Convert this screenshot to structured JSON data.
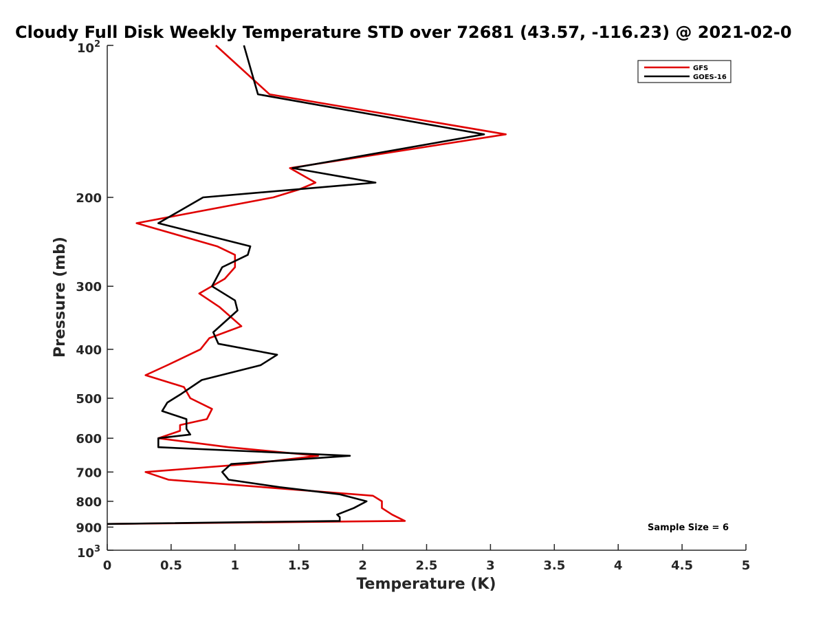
{
  "chart_data": {
    "type": "line",
    "title": "Cloudy Full Disk Weekly Temperature STD over 72681 (43.57, -116.23) @ 2021-02-0",
    "xlabel": "Temperature (K)",
    "ylabel": "Pressure (mb)",
    "xlim": [
      0,
      5
    ],
    "ylim": [
      1000,
      100
    ],
    "y_scale": "log",
    "x_ticks": [
      "0",
      "0.5",
      "1",
      "1.5",
      "2",
      "2.5",
      "3",
      "3.5",
      "4",
      "4.5",
      "5"
    ],
    "y_ticks": [
      {
        "value": 100,
        "base": "10",
        "exp": "2"
      },
      {
        "value": 200,
        "label": "200"
      },
      {
        "value": 300,
        "label": "300"
      },
      {
        "value": 400,
        "label": "400"
      },
      {
        "value": 500,
        "label": "500"
      },
      {
        "value": 600,
        "label": "600"
      },
      {
        "value": 700,
        "label": "700"
      },
      {
        "value": 800,
        "label": "800"
      },
      {
        "value": 900,
        "label": "900"
      },
      {
        "value": 1000,
        "base": "10",
        "exp": "3"
      }
    ],
    "legend_position": "top-right",
    "annotation": "Sample Size = 6",
    "series": [
      {
        "name": "GFS",
        "color": "#e00000",
        "points": [
          [
            0.85,
            100
          ],
          [
            1.27,
            125
          ],
          [
            3.12,
            150
          ],
          [
            1.43,
            175
          ],
          [
            1.63,
            187
          ],
          [
            1.5,
            193
          ],
          [
            1.3,
            200
          ],
          [
            0.23,
            225
          ],
          [
            0.86,
            250
          ],
          [
            1.0,
            260
          ],
          [
            1.0,
            275
          ],
          [
            0.92,
            290
          ],
          [
            0.72,
            310
          ],
          [
            0.88,
            330
          ],
          [
            1.05,
            360
          ],
          [
            0.8,
            380
          ],
          [
            0.73,
            400
          ],
          [
            0.47,
            430
          ],
          [
            0.3,
            450
          ],
          [
            0.6,
            475
          ],
          [
            0.65,
            500
          ],
          [
            0.82,
            525
          ],
          [
            0.78,
            550
          ],
          [
            0.57,
            565
          ],
          [
            0.57,
            580
          ],
          [
            0.4,
            600
          ],
          [
            0.95,
            625
          ],
          [
            1.65,
            650
          ],
          [
            1.1,
            675
          ],
          [
            0.3,
            700
          ],
          [
            0.48,
            725
          ],
          [
            2.08,
            780
          ],
          [
            2.15,
            800
          ],
          [
            2.15,
            825
          ],
          [
            2.23,
            850
          ],
          [
            2.33,
            875
          ],
          [
            0.0,
            887
          ]
        ]
      },
      {
        "name": "GOES-16",
        "color": "#000000",
        "points": [
          [
            1.07,
            100
          ],
          [
            1.18,
            125
          ],
          [
            2.95,
            150
          ],
          [
            1.45,
            175
          ],
          [
            2.1,
            187
          ],
          [
            0.75,
            200
          ],
          [
            0.4,
            225
          ],
          [
            1.12,
            250
          ],
          [
            1.1,
            260
          ],
          [
            0.9,
            275
          ],
          [
            0.82,
            300
          ],
          [
            1.0,
            320
          ],
          [
            1.02,
            335
          ],
          [
            0.83,
            370
          ],
          [
            0.87,
            390
          ],
          [
            1.33,
            410
          ],
          [
            1.2,
            430
          ],
          [
            0.74,
            460
          ],
          [
            0.58,
            490
          ],
          [
            0.47,
            510
          ],
          [
            0.43,
            530
          ],
          [
            0.62,
            550
          ],
          [
            0.62,
            575
          ],
          [
            0.65,
            590
          ],
          [
            0.4,
            600
          ],
          [
            0.4,
            625
          ],
          [
            1.9,
            650
          ],
          [
            0.97,
            675
          ],
          [
            0.9,
            700
          ],
          [
            0.95,
            725
          ],
          [
            1.35,
            750
          ],
          [
            1.82,
            775
          ],
          [
            2.03,
            800
          ],
          [
            1.93,
            825
          ],
          [
            1.8,
            850
          ],
          [
            1.82,
            860
          ],
          [
            1.82,
            875
          ],
          [
            0.0,
            887
          ]
        ]
      }
    ]
  }
}
